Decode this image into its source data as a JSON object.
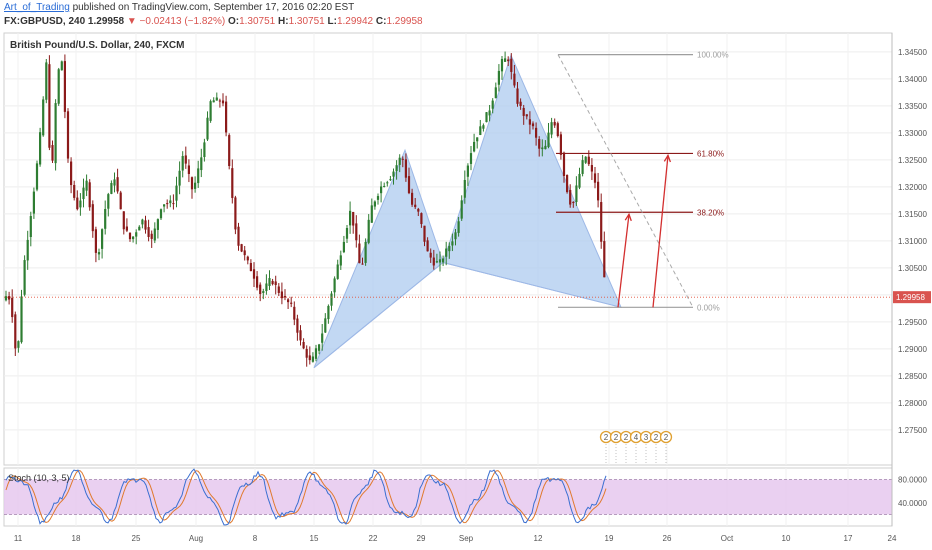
{
  "header": {
    "author": "Art_of_Trading",
    "published_text": "published on TradingView.com, September 17, 2016 02:20 EST",
    "symbol": "FX:GBPUSD, 240",
    "last": "1.29958",
    "change": "−0.02413 (−1.82%)",
    "o_label": "O:",
    "o_val": "1.30751",
    "h_label": "H:",
    "h_val": "1.30751",
    "l_label": "L:",
    "l_val": "1.29942",
    "c_label": "C:",
    "c_val": "1.29958"
  },
  "colors": {
    "up": "#2e7d32",
    "down": "#8b1a1a",
    "pattern_fill": "#aecbef",
    "fib_line": "#8b1a1a",
    "fib_grey": "#9e9e9e",
    "stoch_bg": "#e6c8ef",
    "price_line": "#e0523a",
    "arrow": "#d32f2f"
  },
  "chart_data": [
    {
      "type": "candlestick",
      "title": "British Pound/U.S. Dollar, 240, FXCM",
      "x_ticks": [
        "11",
        "18",
        "25",
        "Aug",
        "8",
        "15",
        "22",
        "29",
        "Sep",
        "12",
        "19",
        "26",
        "Oct",
        "10",
        "17",
        "24"
      ],
      "y_ticks": [
        "1.34500",
        "1.34000",
        "1.33500",
        "1.33000",
        "1.32500",
        "1.32000",
        "1.31500",
        "1.31000",
        "1.30500",
        "1.30000",
        "1.29500",
        "1.29000",
        "1.28500",
        "1.28000",
        "1.27500"
      ],
      "ylim": [
        1.2685,
        1.3485
      ],
      "current_price": "1.29958",
      "fib_levels": [
        {
          "label": "100.00%",
          "price": 1.3445
        },
        {
          "label": "61.80%",
          "price": 1.3262
        },
        {
          "label": "38.20%",
          "price": 1.3153
        },
        {
          "label": "0.00%",
          "price": 1.2977
        }
      ],
      "pattern_points": [
        {
          "date": "Jul 15",
          "price": 1.2865
        },
        {
          "date": "Aug 3",
          "price": 1.3268
        },
        {
          "date": "Aug 10",
          "price": 1.306
        },
        {
          "date": "Sep 6",
          "price": 1.3444
        },
        {
          "date": "Sep 21",
          "price": 1.2977
        }
      ],
      "events": [
        "2",
        "2",
        "2",
        "4",
        "3",
        "2",
        "2"
      ]
    },
    {
      "type": "line",
      "title": "Stoch (10, 3, 5)",
      "y_ticks": [
        "80.0000",
        "40.0000"
      ],
      "ylim": [
        0,
        100
      ],
      "bands": [
        20,
        80
      ]
    }
  ]
}
